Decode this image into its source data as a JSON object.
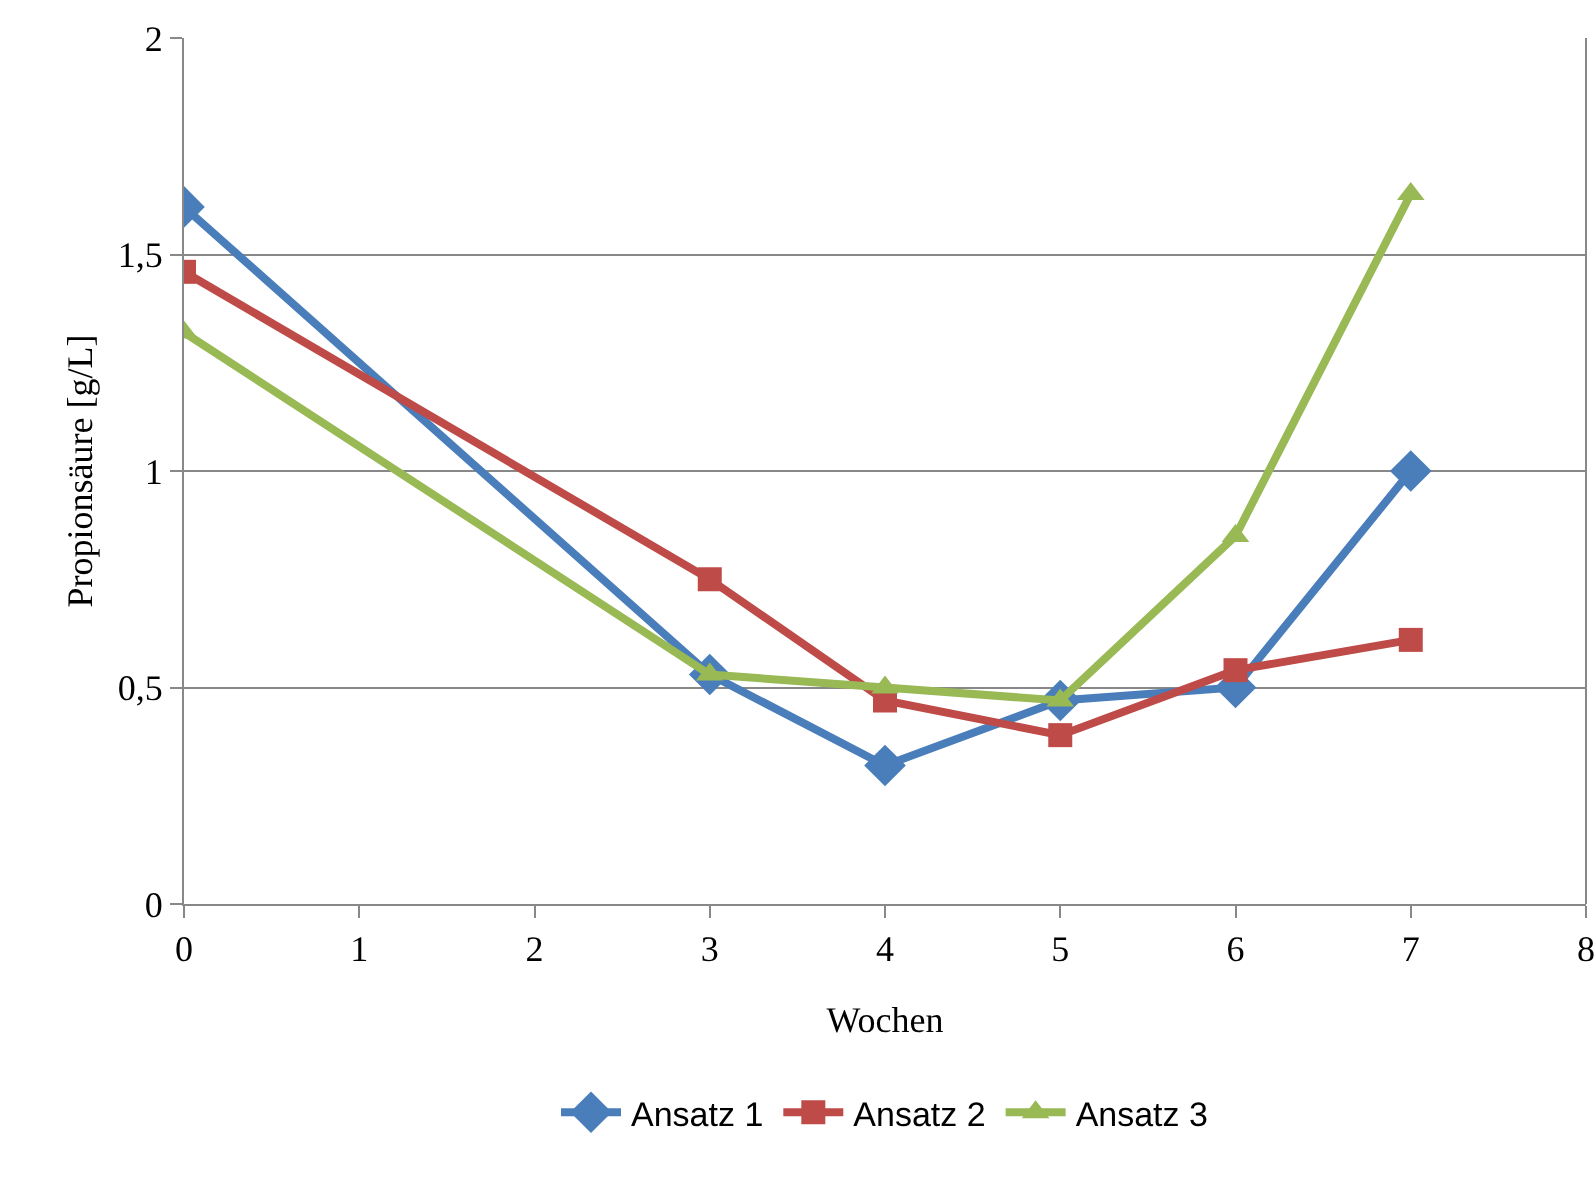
{
  "chart_data": {
    "type": "line",
    "xlabel": "Wochen",
    "ylabel": "Propionsäure [g/L]",
    "x": [
      0,
      3,
      4,
      5,
      6,
      7
    ],
    "series": [
      {
        "name": "Ansatz 1",
        "color": "#4a7ebb",
        "values": [
          1.61,
          0.53,
          0.32,
          0.47,
          0.5,
          1.0
        ],
        "marker": "diamond"
      },
      {
        "name": "Ansatz 2",
        "color": "#be4b48",
        "values": [
          1.46,
          0.75,
          0.47,
          0.39,
          0.54,
          0.61
        ],
        "marker": "square"
      },
      {
        "name": "Ansatz 3",
        "color": "#98b954",
        "values": [
          1.32,
          0.53,
          0.5,
          0.47,
          0.85,
          1.64
        ],
        "marker": "triangle"
      }
    ],
    "xlim": [
      0,
      8
    ],
    "xticks": [
      0,
      1,
      2,
      3,
      4,
      5,
      6,
      7,
      8
    ],
    "ylim": [
      0,
      2
    ],
    "yticks": [
      0,
      {
        "value": 0.5,
        "label": "0,5"
      },
      1,
      {
        "value": 1.5,
        "label": "1,5"
      },
      2
    ],
    "grid": "y",
    "legend": "bottom",
    "line_style": "solid"
  }
}
